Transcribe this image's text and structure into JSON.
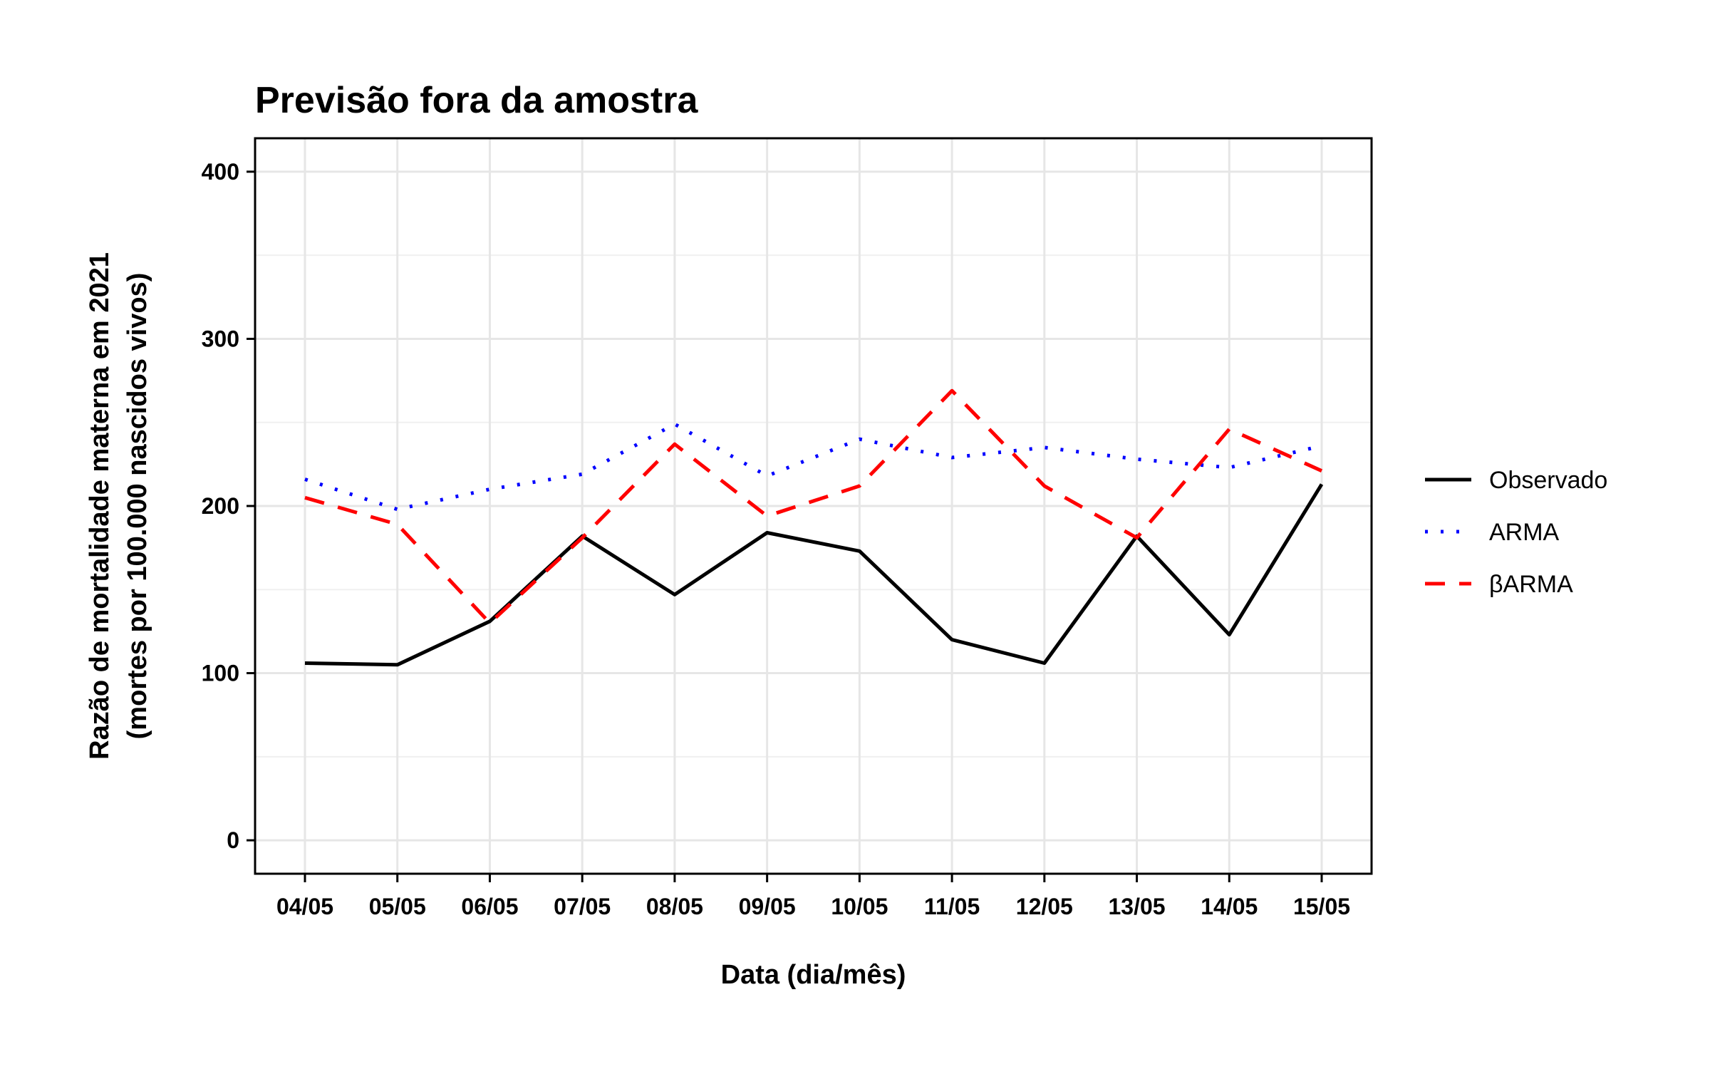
{
  "chart_data": {
    "type": "line",
    "title": "Previsão fora da amostra",
    "xlabel": "Data (dia/mês)",
    "ylabel_lines": [
      "Razão de mortalidade materna em 2021",
      "(mortes por 100.000 nascidos vivos)"
    ],
    "categories": [
      "04/05",
      "05/05",
      "06/05",
      "07/05",
      "08/05",
      "09/05",
      "10/05",
      "11/05",
      "12/05",
      "13/05",
      "14/05",
      "15/05"
    ],
    "ylim": [
      -20,
      420
    ],
    "yticks": [
      0,
      100,
      200,
      300,
      400
    ],
    "grid": true,
    "legend_position": "right",
    "series": [
      {
        "name": "Observado",
        "color": "#000000",
        "dash": "solid",
        "values": [
          106,
          105,
          131,
          182,
          147,
          184,
          173,
          120,
          106,
          182,
          123,
          213
        ]
      },
      {
        "name": "ARMA",
        "color": "#0000ff",
        "dash": "dotted",
        "values": [
          216,
          198,
          210,
          219,
          249,
          218,
          240,
          229,
          235,
          228,
          223,
          236
        ]
      },
      {
        "name": "βARMA",
        "color": "#ff0000",
        "dash": "dashed",
        "values": [
          205,
          189,
          130,
          181,
          237,
          194,
          212,
          269,
          212,
          181,
          246,
          221
        ]
      }
    ]
  }
}
